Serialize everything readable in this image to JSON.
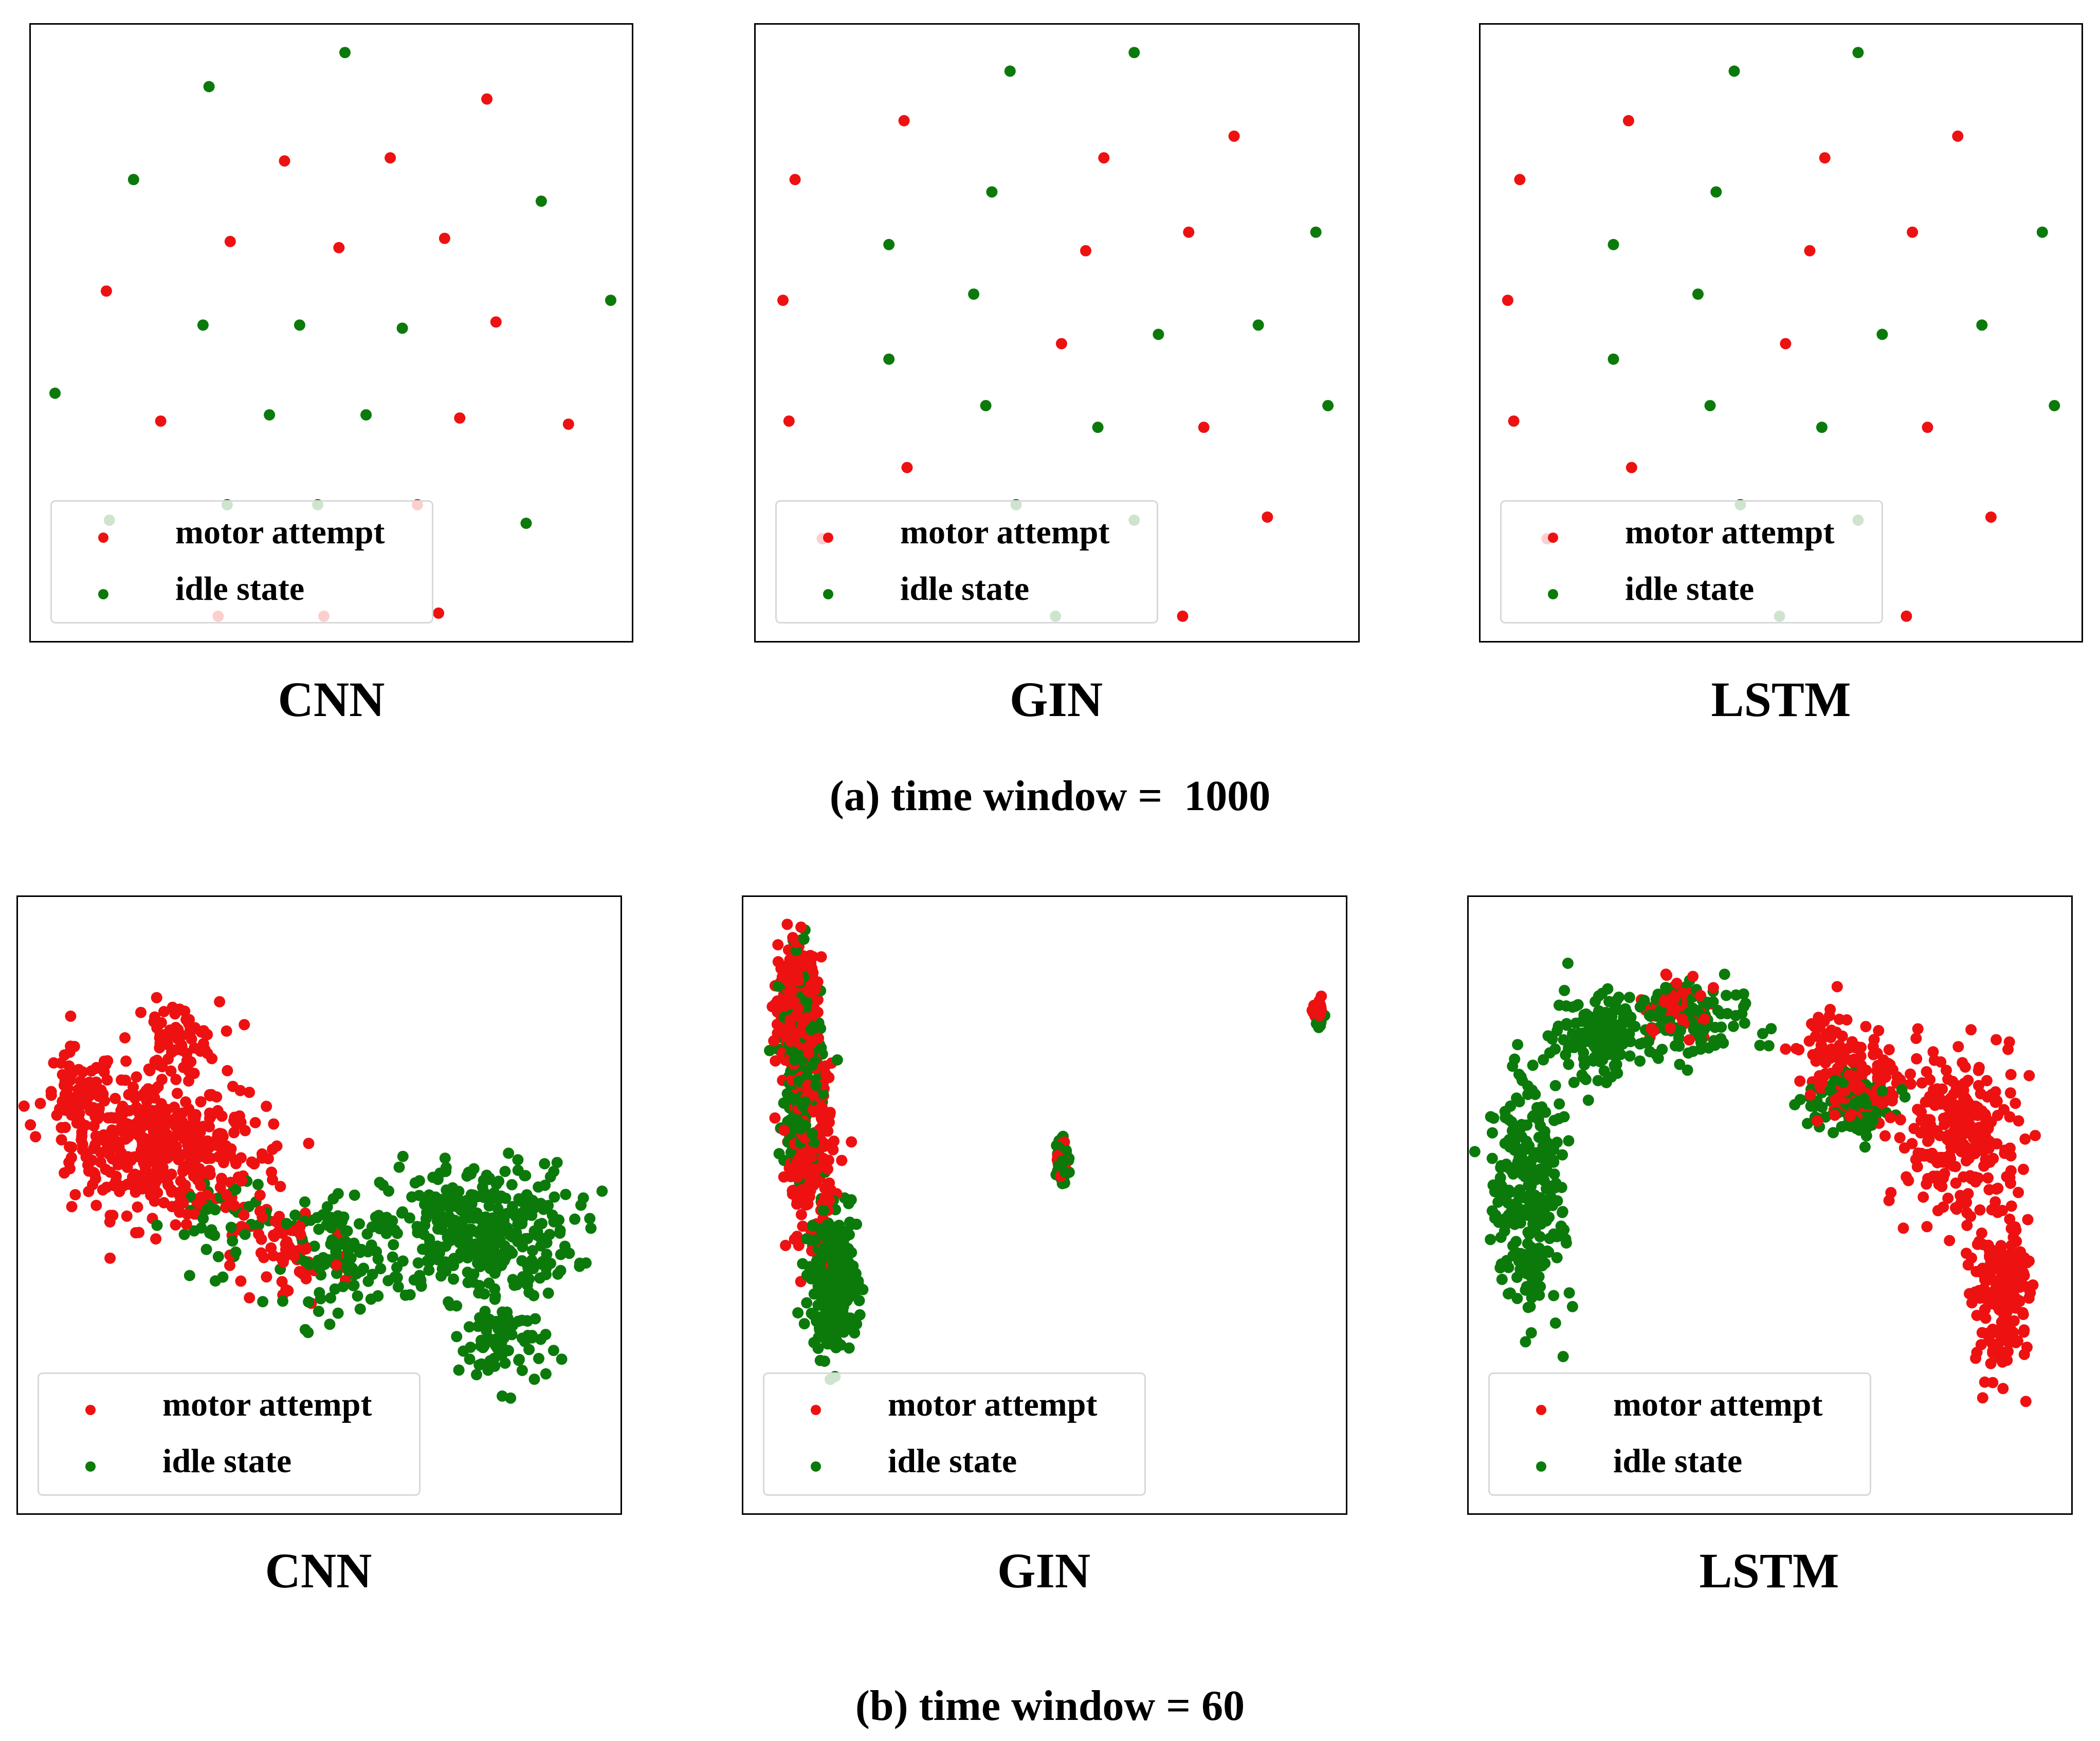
{
  "colors": {
    "motor_attempt": "#ee1111",
    "idle_state": "#0b7a0b"
  },
  "legend": {
    "motor_attempt": "motor attempt",
    "idle_state": "idle state"
  },
  "captions": {
    "a": "(a) time window =  1000",
    "b": "(b) time window = 60"
  },
  "chart_data": [
    {
      "type": "scatter",
      "title": "CNN",
      "group": "a",
      "xlim": [
        0,
        100
      ],
      "ylim": [
        0,
        100
      ],
      "series": [
        {
          "name": "motor attempt",
          "points": [
            [
              75.5,
              88
            ],
            [
              42,
              78
            ],
            [
              59.5,
              78.5
            ],
            [
              33,
              65
            ],
            [
              51,
              64
            ],
            [
              68.5,
              65.5
            ],
            [
              12.5,
              57
            ],
            [
              77,
              52
            ],
            [
              21.5,
              36
            ],
            [
              71,
              36.5
            ],
            [
              89,
              35.5
            ],
            [
              67.5,
              5
            ],
            [
              31,
              4.5
            ],
            [
              48.5,
              4.5
            ],
            [
              64,
              22.5
            ]
          ]
        },
        {
          "name": "idle state",
          "points": [
            [
              52,
              95.5
            ],
            [
              29.5,
              90
            ],
            [
              17,
              75
            ],
            [
              84.5,
              71.5
            ],
            [
              96,
              55.5
            ],
            [
              28.5,
              51.5
            ],
            [
              44.5,
              51.5
            ],
            [
              61.5,
              51
            ],
            [
              4,
              40.5
            ],
            [
              39.5,
              37
            ],
            [
              55.5,
              37
            ],
            [
              82,
              19.5
            ],
            [
              13,
              20
            ],
            [
              32.5,
              22.5
            ],
            [
              47.5,
              22.5
            ]
          ]
        }
      ]
    },
    {
      "type": "scatter",
      "title": "GIN",
      "group": "a",
      "xlim": [
        0,
        100
      ],
      "ylim": [
        0,
        100
      ],
      "series": [
        {
          "name": "motor attempt",
          "points": [
            [
              24.5,
              84.5
            ],
            [
              57.5,
              78.5
            ],
            [
              79,
              82
            ],
            [
              6.5,
              75
            ],
            [
              54.5,
              63.5
            ],
            [
              71.5,
              66.5
            ],
            [
              4.5,
              55.5
            ],
            [
              50.5,
              48.5
            ],
            [
              5.5,
              36
            ],
            [
              74,
              35
            ],
            [
              25,
              28.5
            ],
            [
              84.5,
              20.5
            ],
            [
              70.5,
              4.5
            ],
            [
              11,
              17
            ]
          ]
        },
        {
          "name": "idle state",
          "points": [
            [
              42,
              92.5
            ],
            [
              62.5,
              95.5
            ],
            [
              39,
              73
            ],
            [
              22,
              64.5
            ],
            [
              92.5,
              66.5
            ],
            [
              36,
              56.5
            ],
            [
              66.5,
              50
            ],
            [
              83,
              51.5
            ],
            [
              22,
              46
            ],
            [
              38,
              38.5
            ],
            [
              56.5,
              35
            ],
            [
              94.5,
              38.5
            ],
            [
              43,
              22.5
            ],
            [
              62.5,
              20
            ],
            [
              49.5,
              4.5
            ]
          ]
        }
      ]
    },
    {
      "type": "scatter",
      "title": "LSTM",
      "group": "a",
      "xlim": [
        0,
        100
      ],
      "ylim": [
        0,
        100
      ],
      "series": [
        {
          "name": "motor attempt",
          "points": [
            [
              24.5,
              84.5
            ],
            [
              57,
              78.5
            ],
            [
              79,
              82
            ],
            [
              6.5,
              75
            ],
            [
              54.5,
              63.5
            ],
            [
              71.5,
              66.5
            ],
            [
              4.5,
              55.5
            ],
            [
              50.5,
              48.5
            ],
            [
              5.5,
              36
            ],
            [
              74,
              35
            ],
            [
              25,
              28.5
            ],
            [
              84.5,
              20.5
            ],
            [
              70.5,
              4.5
            ],
            [
              11,
              17
            ]
          ]
        },
        {
          "name": "idle state",
          "points": [
            [
              42,
              92.5
            ],
            [
              62.5,
              95.5
            ],
            [
              39,
              73
            ],
            [
              22,
              64.5
            ],
            [
              93,
              66.5
            ],
            [
              36,
              56.5
            ],
            [
              66.5,
              50
            ],
            [
              83,
              51.5
            ],
            [
              22,
              46
            ],
            [
              38,
              38.5
            ],
            [
              56.5,
              35
            ],
            [
              95,
              38.5
            ],
            [
              43,
              22.5
            ],
            [
              62.5,
              20
            ],
            [
              49.5,
              4.5
            ]
          ]
        }
      ]
    },
    {
      "type": "scatter",
      "title": "CNN",
      "group": "b",
      "xlim": [
        0,
        100
      ],
      "ylim": [
        0,
        100
      ],
      "clusters": [
        {
          "name": "motor attempt",
          "count": 650,
          "blobs": [
            [
              22,
              60,
              11,
              9,
              0.55
            ],
            [
              10,
              67,
              5,
              7,
              0.12
            ],
            [
              35,
              57,
              9,
              8,
              0.13
            ],
            [
              26,
              77,
              6,
              5,
              0.1
            ],
            [
              45,
              42,
              8,
              7,
              0.1
            ]
          ]
        },
        {
          "name": "idle state",
          "count": 600,
          "blobs": [
            [
              76,
              46,
              13,
              9,
              0.62
            ],
            [
              54,
              42,
              8,
              7,
              0.18
            ],
            [
              33,
              48,
              7,
              7,
              0.08
            ],
            [
              80,
              28,
              6,
              6,
              0.12
            ]
          ]
        }
      ]
    },
    {
      "type": "scatter",
      "title": "GIN",
      "group": "b",
      "xlim": [
        0,
        100
      ],
      "ylim": [
        0,
        100
      ],
      "clusters": [
        {
          "name": "motor attempt",
          "count": 650,
          "blobs": [
            [
              9,
              82,
              2.6,
              8,
              0.6
            ],
            [
              11,
              58,
              3.2,
              12,
              0.3
            ],
            [
              52.5,
              58,
              0.8,
              3,
              0.05
            ],
            [
              95,
              81,
              0.6,
              1.5,
              0.05
            ]
          ]
        },
        {
          "name": "idle state",
          "count": 650,
          "blobs": [
            [
              9.5,
              73,
              2.8,
              14,
              0.4
            ],
            [
              15,
              38,
              3.2,
              9,
              0.5
            ],
            [
              52.5,
              58,
              0.8,
              3.5,
              0.07
            ],
            [
              95,
              80,
              0.5,
              1.2,
              0.03
            ]
          ]
        }
      ]
    },
    {
      "type": "scatter",
      "title": "LSTM",
      "group": "b",
      "xlim": [
        0,
        100
      ],
      "ylim": [
        0,
        100
      ],
      "clusters": [
        {
          "name": "motor attempt",
          "count": 650,
          "blobs": [
            [
              80,
              62,
              8,
              10,
              0.4
            ],
            [
              88,
              37,
              4,
              12,
              0.3
            ],
            [
              66,
              70,
              6,
              5,
              0.12
            ],
            [
              34,
              82,
              6,
              4,
              0.08
            ],
            [
              60,
              75,
              5,
              6,
              0.1
            ]
          ]
        },
        {
          "name": "idle state",
          "count": 600,
          "blobs": [
            [
              10,
              52,
              5,
              15,
              0.45
            ],
            [
              22,
              78,
              7,
              6,
              0.25
            ],
            [
              38,
              80,
              7,
              5,
              0.15
            ],
            [
              63,
              66,
              6,
              4,
              0.15
            ]
          ]
        }
      ]
    }
  ]
}
